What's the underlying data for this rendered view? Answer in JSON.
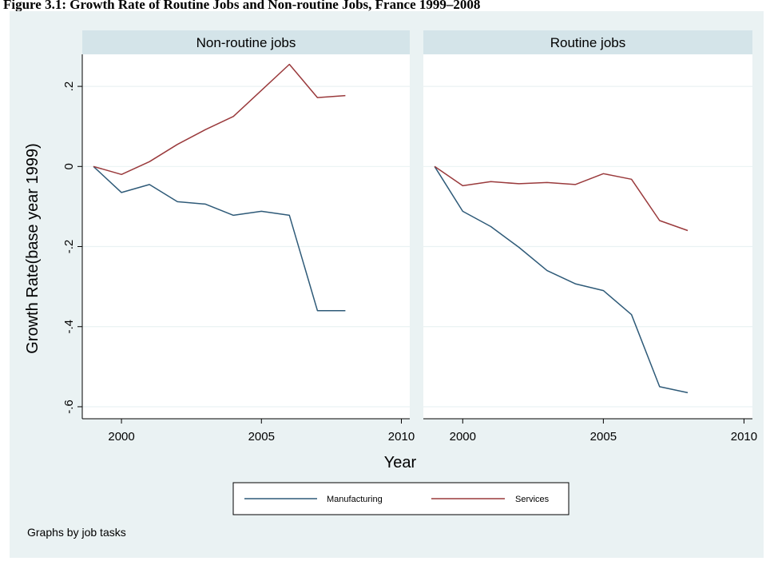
{
  "caption": "Figure 3.1: Growth Rate of Routine Jobs and Non-routine Jobs, France 1999–2008",
  "note": "Graphs by job tasks",
  "colors": {
    "background": "#eaf2f3",
    "plot": "#ffffff",
    "strip": "#d4e4e9",
    "grid": "#eaf2f3",
    "manufacturing": "#2e5a78",
    "services": "#9a3a3c"
  },
  "chart_data": {
    "type": "line",
    "xlabel": "Year",
    "ylabel": "Growth Rate(base year 1999)",
    "xlim": [
      1998.6,
      2010.3
    ],
    "ylim": [
      -0.63,
      0.28
    ],
    "xticks": [
      2000,
      2005,
      2010
    ],
    "yticks": [
      0.2,
      0,
      -0.2,
      -0.4,
      -0.6
    ],
    "ytick_labels": [
      ".2",
      "0",
      "-.2",
      "-.4",
      "-.6"
    ],
    "grid": true,
    "legend": {
      "position": "bottom",
      "entries": [
        "Manufacturing",
        "Services"
      ]
    },
    "x": [
      1999,
      2000,
      2001,
      2002,
      2003,
      2004,
      2005,
      2006,
      2007,
      2008
    ],
    "panels": [
      {
        "title": "Non-routine jobs",
        "series": [
          {
            "name": "Manufacturing",
            "values": [
              0,
              -0.065,
              -0.045,
              -0.088,
              -0.094,
              -0.122,
              -0.112,
              -0.122,
              -0.36,
              -0.36
            ]
          },
          {
            "name": "Services",
            "values": [
              0,
              -0.02,
              0.012,
              0.055,
              0.092,
              0.125,
              0.19,
              0.255,
              0.172,
              0.177
            ]
          }
        ]
      },
      {
        "title": "Routine jobs",
        "series": [
          {
            "name": "Manufacturing",
            "values": [
              0,
              -0.112,
              -0.15,
              -0.202,
              -0.26,
              -0.293,
              -0.31,
              -0.37,
              -0.55,
              -0.565
            ]
          },
          {
            "name": "Services",
            "values": [
              0,
              -0.048,
              -0.038,
              -0.043,
              -0.04,
              -0.045,
              -0.018,
              -0.032,
              -0.135,
              -0.16
            ]
          }
        ]
      }
    ]
  }
}
